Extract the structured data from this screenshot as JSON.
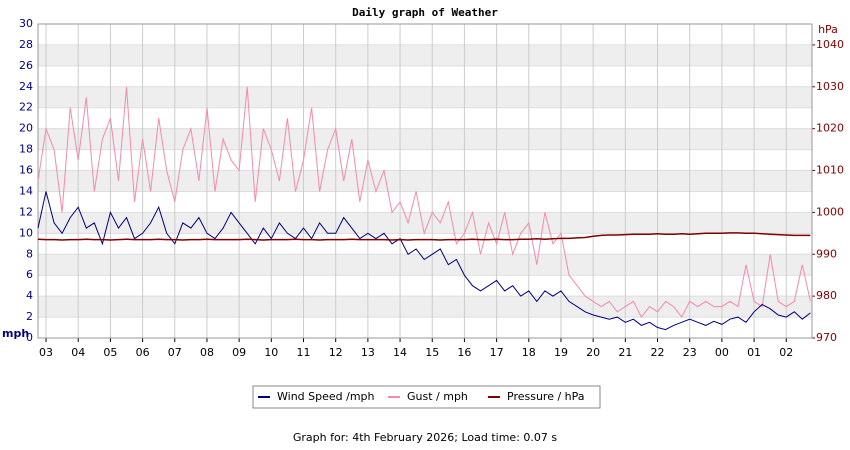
{
  "chart_data": {
    "type": "line",
    "title": "Daily graph of Weather",
    "y_label": "mph",
    "y2_label": "hPa",
    "footer": "Graph for: 4th February 2026; Load time: 0.07 s",
    "legend": "bottom",
    "grid": true,
    "x": [
      -0.25,
      0,
      0.25,
      0.5,
      0.75,
      1,
      1.25,
      1.5,
      1.75,
      2,
      2.25,
      2.5,
      2.75,
      3,
      3.25,
      3.5,
      3.75,
      4,
      4.25,
      4.5,
      4.75,
      5,
      5.25,
      5.5,
      5.75,
      6,
      6.25,
      6.5,
      6.75,
      7,
      7.25,
      7.5,
      7.75,
      8,
      8.25,
      8.5,
      8.75,
      9,
      9.25,
      9.5,
      9.75,
      10,
      10.25,
      10.5,
      10.75,
      11,
      11.25,
      11.5,
      11.75,
      12,
      12.25,
      12.5,
      12.75,
      13,
      13.25,
      13.5,
      13.75,
      14,
      14.25,
      14.5,
      14.75,
      15,
      15.25,
      15.5,
      15.75,
      16,
      16.25,
      16.5,
      16.75,
      17,
      17.25,
      17.5,
      17.75,
      18,
      18.25,
      18.5,
      18.75,
      19,
      19.25,
      19.5,
      19.75,
      20,
      20.25,
      20.5,
      20.75,
      21,
      21.25,
      21.5,
      21.75,
      22,
      22.25,
      22.5,
      22.75,
      23,
      23.25,
      23.5,
      23.75
    ],
    "xlim": [
      -0.25,
      23.8
    ],
    "xticks": [
      {
        "value": 0,
        "label": "03"
      },
      {
        "value": 1,
        "label": "04"
      },
      {
        "value": 2,
        "label": "05"
      },
      {
        "value": 3,
        "label": "06"
      },
      {
        "value": 4,
        "label": "07"
      },
      {
        "value": 5,
        "label": "08"
      },
      {
        "value": 6,
        "label": "09"
      },
      {
        "value": 7,
        "label": "10"
      },
      {
        "value": 8,
        "label": "11"
      },
      {
        "value": 9,
        "label": "12"
      },
      {
        "value": 10,
        "label": "13"
      },
      {
        "value": 11,
        "label": "14"
      },
      {
        "value": 12,
        "label": "15"
      },
      {
        "value": 13,
        "label": "16"
      },
      {
        "value": 14,
        "label": "17"
      },
      {
        "value": 15,
        "label": "18"
      },
      {
        "value": 16,
        "label": "19"
      },
      {
        "value": 17,
        "label": "20"
      },
      {
        "value": 18,
        "label": "21"
      },
      {
        "value": 19,
        "label": "22"
      },
      {
        "value": 20,
        "label": "23"
      },
      {
        "value": 21,
        "label": "00"
      },
      {
        "value": 22,
        "label": "01"
      },
      {
        "value": 23,
        "label": "02"
      }
    ],
    "ylim": [
      0,
      30
    ],
    "yticks": [
      0,
      2,
      4,
      6,
      8,
      10,
      12,
      14,
      16,
      18,
      20,
      22,
      24,
      26,
      28,
      30
    ],
    "y2lim": [
      970,
      1045
    ],
    "y2ticks": [
      970,
      980,
      990,
      1000,
      1010,
      1020,
      1030,
      1040
    ],
    "series": [
      {
        "name": "Wind Speed /mph",
        "color": "#000080",
        "values": [
          10.5,
          14,
          11,
          10,
          11.5,
          12.5,
          10.5,
          11,
          9,
          12,
          10.5,
          11.5,
          9.5,
          10,
          11,
          12.5,
          10,
          9,
          11,
          10.5,
          11.5,
          10,
          9.5,
          10.5,
          12,
          11,
          10,
          9,
          10.5,
          9.5,
          11,
          10,
          9.5,
          10.5,
          9.5,
          11,
          10,
          10,
          11.5,
          10.5,
          9.5,
          10,
          9.5,
          10,
          9,
          9.5,
          8,
          8.5,
          7.5,
          8,
          8.5,
          7,
          7.5,
          6,
          5,
          4.5,
          5,
          5.5,
          4.5,
          5,
          4,
          4.5,
          3.5,
          4.5,
          4,
          4.5,
          3.5,
          3,
          2.5,
          2.2,
          2,
          1.8,
          2,
          1.5,
          1.8,
          1.2,
          1.5,
          1,
          0.8,
          1.2,
          1.5,
          1.8,
          1.5,
          1.2,
          1.6,
          1.3,
          1.8,
          2,
          1.5,
          2.5,
          3.2,
          2.8,
          2.2,
          2,
          2.5,
          1.8,
          2.4
        ]
      },
      {
        "name": "Gust / mph",
        "color": "#f58aaa",
        "values": [
          15,
          20,
          18,
          12,
          22,
          17,
          23,
          14,
          19,
          21,
          15,
          24,
          13,
          19,
          14,
          21,
          16,
          13,
          18,
          20,
          15,
          22,
          14,
          19,
          17,
          16,
          24,
          13,
          20,
          18,
          15,
          21,
          14,
          17,
          22,
          14,
          18,
          20,
          15,
          19,
          13,
          17,
          14,
          16,
          12,
          13,
          11,
          14,
          10,
          12,
          11,
          13,
          9,
          10,
          12,
          8,
          11,
          9,
          12,
          8,
          10,
          11,
          7,
          12,
          9,
          10,
          6,
          5,
          4,
          3.5,
          3,
          3.5,
          2.5,
          3,
          3.5,
          2,
          3,
          2.5,
          3.5,
          3,
          2,
          3.5,
          3,
          3.5,
          3,
          3,
          3.5,
          3,
          7,
          3.5,
          3,
          8,
          3.5,
          3,
          3.5,
          7,
          3.5
        ]
      },
      {
        "name": "Pressure / hPa",
        "color": "#800000",
        "axis": "y2",
        "values": [
          993.6,
          993.5,
          993.5,
          993.4,
          993.5,
          993.5,
          993.6,
          993.5,
          993.5,
          993.4,
          993.5,
          993.6,
          993.5,
          993.5,
          993.5,
          993.6,
          993.5,
          993.5,
          993.4,
          993.5,
          993.5,
          993.6,
          993.5,
          993.5,
          993.5,
          993.5,
          993.6,
          993.5,
          993.4,
          993.5,
          993.5,
          993.5,
          993.6,
          993.5,
          993.5,
          993.4,
          993.5,
          993.5,
          993.5,
          993.6,
          993.5,
          993.5,
          993.5,
          993.5,
          993.4,
          993.5,
          993.4,
          993.5,
          993.5,
          993.5,
          993.4,
          993.5,
          993.5,
          993.5,
          993.6,
          993.5,
          993.5,
          993.6,
          993.5,
          993.5,
          993.6,
          993.6,
          993.7,
          993.6,
          993.7,
          993.8,
          993.8,
          993.9,
          994,
          994.3,
          994.5,
          994.6,
          994.6,
          994.7,
          994.8,
          994.8,
          994.8,
          994.9,
          994.8,
          994.8,
          994.9,
          994.8,
          994.9,
          995,
          995,
          995,
          995.1,
          995.1,
          995,
          995,
          994.9,
          994.8,
          994.7,
          994.6,
          994.5,
          994.5,
          994.5
        ]
      }
    ]
  }
}
